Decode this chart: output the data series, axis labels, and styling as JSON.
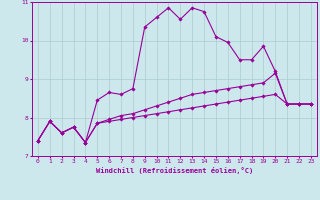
{
  "xlabel": "Windchill (Refroidissement éolien,°C)",
  "background_color": "#cce8ec",
  "line_color": "#990099",
  "grid_color": "#aacccc",
  "xlim": [
    -0.5,
    23.5
  ],
  "ylim": [
    7.0,
    11.0
  ],
  "xticks": [
    0,
    1,
    2,
    3,
    4,
    5,
    6,
    7,
    8,
    9,
    10,
    11,
    12,
    13,
    14,
    15,
    16,
    17,
    18,
    19,
    20,
    21,
    22,
    23
  ],
  "yticks": [
    7,
    8,
    9,
    10,
    11
  ],
  "series": {
    "line1_x": [
      0,
      1,
      2,
      3,
      4,
      5,
      6,
      7,
      8,
      9,
      10,
      11,
      12,
      13,
      14,
      15,
      16,
      17,
      18,
      19,
      20,
      21,
      22,
      23
    ],
    "line1_y": [
      7.4,
      7.9,
      7.6,
      7.75,
      7.35,
      8.45,
      8.65,
      8.6,
      8.75,
      10.35,
      10.6,
      10.85,
      10.55,
      10.85,
      10.75,
      10.1,
      9.95,
      9.5,
      9.5,
      9.85,
      9.2,
      8.35,
      8.35,
      8.35
    ],
    "line2_x": [
      0,
      1,
      2,
      3,
      4,
      5,
      6,
      7,
      8,
      9,
      10,
      11,
      12,
      13,
      14,
      15,
      16,
      17,
      18,
      19,
      20,
      21,
      22,
      23
    ],
    "line2_y": [
      7.4,
      7.9,
      7.6,
      7.75,
      7.35,
      7.85,
      7.95,
      8.05,
      8.1,
      8.2,
      8.3,
      8.4,
      8.5,
      8.6,
      8.65,
      8.7,
      8.75,
      8.8,
      8.85,
      8.9,
      9.15,
      8.35,
      8.35,
      8.35
    ],
    "line3_x": [
      0,
      1,
      2,
      3,
      4,
      5,
      6,
      7,
      8,
      9,
      10,
      11,
      12,
      13,
      14,
      15,
      16,
      17,
      18,
      19,
      20,
      21,
      22,
      23
    ],
    "line3_y": [
      7.4,
      7.9,
      7.6,
      7.75,
      7.35,
      7.85,
      7.9,
      7.95,
      8.0,
      8.05,
      8.1,
      8.15,
      8.2,
      8.25,
      8.3,
      8.35,
      8.4,
      8.45,
      8.5,
      8.55,
      8.6,
      8.35,
      8.35,
      8.35
    ]
  }
}
